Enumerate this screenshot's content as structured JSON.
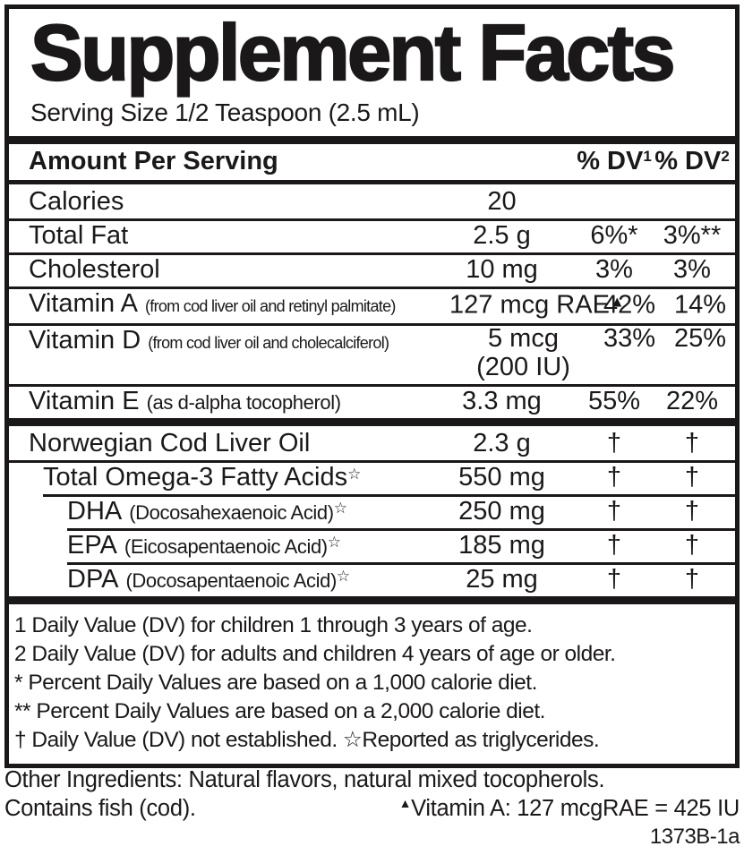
{
  "colors": {
    "ink": "#1b181a",
    "background": "#ffffff"
  },
  "label": {
    "title": "Supplement Facts",
    "serving_size": "Serving Size 1/2 Teaspoon (2.5 mL)"
  },
  "table": {
    "header": {
      "amount_per_serving": "Amount Per Serving",
      "dv1_label": "% DV",
      "dv1_sup": "1",
      "dv2_label": "% DV",
      "dv2_sup": "2"
    },
    "rows": [
      {
        "name": "Calories",
        "amount": "20",
        "dv1": "",
        "dv2": ""
      },
      {
        "name": "Total Fat",
        "amount": "2.5 g",
        "dv1": "6%*",
        "dv2": "3%**"
      },
      {
        "name": "Cholesterol",
        "amount": "10 mg",
        "dv1": "3%",
        "dv2": "3%"
      },
      {
        "name": "Vitamin A",
        "note": "(from cod liver oil and retinyl palmitate)",
        "amount": "127 mcg RAE",
        "amount_sup": "▲",
        "dv1": "42%",
        "dv2": "14%"
      },
      {
        "name": "Vitamin D",
        "note": "(from cod liver oil and cholecalciferol)",
        "amount": "5 mcg",
        "amount2": "(200 IU)",
        "dv1": "33%",
        "dv2": "25%"
      },
      {
        "name": "Vitamin E",
        "note": "(as d-alpha tocopherol)",
        "amount": "3.3 mg",
        "dv1": "55%",
        "dv2": "22%"
      },
      {
        "name": "Norwegian Cod Liver Oil",
        "amount": "2.3 g",
        "dv1": "†",
        "dv2": "†"
      },
      {
        "name": "Total Omega-3 Fatty Acids",
        "name_sup": "☆",
        "amount": "550 mg",
        "dv1": "†",
        "dv2": "†"
      },
      {
        "name": "DHA",
        "note": "(Docosahexaenoic Acid)",
        "name_sup": "☆",
        "amount": "250 mg",
        "dv1": "†",
        "dv2": "†"
      },
      {
        "name": "EPA",
        "note": "(Eicosapentaenoic Acid)",
        "name_sup": "☆",
        "amount": "185 mg",
        "dv1": "†",
        "dv2": "†"
      },
      {
        "name": "DPA",
        "note": "(Docosapentaenoic Acid)",
        "name_sup": "☆",
        "amount": "25 mg",
        "dv1": "†",
        "dv2": "†"
      }
    ],
    "footnotes": [
      "1 Daily Value (DV) for children 1 through 3 years of age.",
      "2 Daily Value (DV) for adults and children 4 years of age or older.",
      "* Percent Daily Values are based on a 1,000 calorie diet.",
      "** Percent Daily Values are based on a 2,000 calorie diet.",
      "† Daily Value (DV) not established. ☆Reported as triglycerides."
    ]
  },
  "bottom": {
    "other_ingredients": "Other Ingredients:  Natural flavors, natural mixed tocopherols.",
    "contains": "Contains fish (cod).",
    "vitamin_a_note_sup": "▲",
    "vitamin_a_note": "Vitamin A: 127 mcgRAE = 425 IU",
    "code": "1373B-1a"
  }
}
